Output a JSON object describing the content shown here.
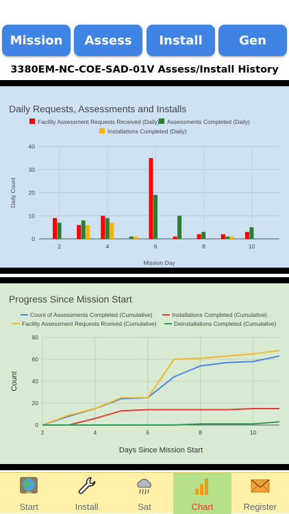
{
  "tabs": [
    {
      "label": "Mission"
    },
    {
      "label": "Assess"
    },
    {
      "label": "Install"
    },
    {
      "label": "Gen"
    }
  ],
  "page_title": "3380EM-NC-COE-SAD-01V Assess/Install History",
  "bottom_nav": [
    {
      "label": "Start",
      "icon": "globe-icon"
    },
    {
      "label": "Install",
      "icon": "wrench-icon"
    },
    {
      "label": "Sat",
      "icon": "cloud-icon"
    },
    {
      "label": "Chart",
      "icon": "bar-chart-icon",
      "active": true
    },
    {
      "label": "Register",
      "icon": "envelope-icon"
    }
  ],
  "chart_data": [
    {
      "type": "bar",
      "title": "Daily Requests, Assessments and Installs",
      "xlabel": "Mission Day",
      "ylabel": "Daily Count",
      "ylim": [
        0,
        40
      ],
      "yticks": [
        0,
        10,
        20,
        30,
        40
      ],
      "xticks": [
        2,
        4,
        6,
        8,
        10
      ],
      "legend": "top",
      "categories": [
        2,
        3,
        4,
        5,
        6,
        7,
        8,
        9,
        10
      ],
      "series": [
        {
          "name": "Facility Assessment Requests Received (Daily)",
          "color": "#ff0000",
          "values": [
            9,
            6,
            10,
            0,
            35,
            1,
            2,
            2,
            3
          ]
        },
        {
          "name": "Assessments Completed (Daily)",
          "color": "#2e7d32",
          "values": [
            7,
            8,
            9,
            1,
            19,
            10,
            3,
            1,
            5
          ]
        },
        {
          "name": "Installations Completed (Daily)",
          "color": "#f9b400",
          "values": [
            0,
            6,
            7,
            1,
            0,
            0,
            0,
            1,
            0
          ]
        }
      ]
    },
    {
      "type": "line",
      "title": "Progress Since Mission Start",
      "xlabel": "Days Since Mission Start",
      "ylabel": "Count",
      "xlim": [
        2,
        11
      ],
      "ylim": [
        0,
        80
      ],
      "yticks": [
        0,
        20,
        40,
        60,
        80
      ],
      "xticks": [
        2,
        4,
        6,
        8,
        10
      ],
      "legend": "top",
      "x": [
        2,
        3,
        4,
        5,
        6,
        7,
        8,
        9,
        10,
        11
      ],
      "series": [
        {
          "name": "Count of Assessments Completed (Cumulative)",
          "color": "#4a86e8",
          "values": [
            0,
            8,
            15,
            24,
            25,
            44,
            54,
            57,
            58,
            63
          ]
        },
        {
          "name": "Installations Completed (Cumulative)",
          "color": "#e53935",
          "values": [
            0,
            0,
            6,
            13,
            14,
            14,
            14,
            14,
            15,
            15
          ]
        },
        {
          "name": "Facility Assessment Requests Rceived (Cumulative)",
          "color": "#f1b82d",
          "values": [
            0,
            9,
            15,
            25,
            25,
            60,
            61,
            63,
            65,
            68
          ]
        },
        {
          "name": "Deinstallations Completed (Cumulative)",
          "color": "#2e9d52",
          "values": [
            0,
            0,
            0,
            0,
            0,
            0,
            1,
            1,
            1,
            3
          ]
        }
      ]
    }
  ]
}
